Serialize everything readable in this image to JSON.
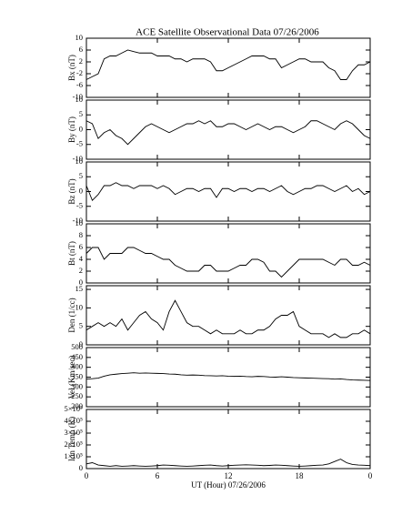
{
  "title": "ACE Satellite Observational Data   07/26/2006",
  "xlabel": "UT (Hour)   07/26/2006",
  "xlim": [
    0,
    24
  ],
  "xticks": [
    0,
    6,
    12,
    18,
    {
      "value": 24,
      "label": "0"
    }
  ],
  "x": [
    0,
    0.5,
    1,
    1.5,
    2,
    2.5,
    3,
    3.5,
    4,
    4.5,
    5,
    5.5,
    6,
    6.5,
    7,
    7.5,
    8,
    8.5,
    9,
    9.5,
    10,
    10.5,
    11,
    11.5,
    12,
    12.5,
    13,
    13.5,
    14,
    14.5,
    15,
    15.5,
    16,
    16.5,
    17,
    17.5,
    18,
    18.5,
    19,
    19.5,
    20,
    20.5,
    21,
    21.5,
    22,
    22.5,
    23,
    23.5,
    24
  ],
  "chart_data": [
    {
      "type": "line",
      "ylabel": "Bx (nT)",
      "color": "#000000",
      "ylim": [
        -10,
        10
      ],
      "yticks": [
        -10,
        -6,
        -2,
        2,
        6,
        10
      ],
      "values": [
        -4,
        -3,
        -2,
        3,
        4,
        4,
        5,
        6,
        5.5,
        5,
        5,
        5,
        4,
        4,
        4,
        3,
        3,
        2,
        3,
        3,
        3,
        2,
        -1,
        -1,
        0,
        1,
        2,
        3,
        4,
        4,
        4,
        3,
        3,
        0,
        1,
        2,
        3,
        3,
        2,
        2,
        2,
        0,
        -1,
        -4,
        -4,
        -1,
        1,
        1,
        2
      ]
    },
    {
      "type": "line",
      "ylabel": "By (nT)",
      "color": "#000000",
      "ylim": [
        -10,
        10
      ],
      "yticks": [
        -10,
        -5,
        0,
        5,
        10
      ],
      "values": [
        3,
        2,
        -3,
        -1,
        0,
        -2,
        -3,
        -5,
        -3,
        -1,
        1,
        2,
        1,
        0,
        -1,
        0,
        1,
        2,
        2,
        3,
        2,
        3,
        1,
        1,
        2,
        2,
        1,
        0,
        1,
        2,
        1,
        0,
        1,
        1,
        0,
        -1,
        0,
        1,
        3,
        3,
        2,
        1,
        0,
        2,
        3,
        2,
        0,
        -2,
        -3
      ]
    },
    {
      "type": "line",
      "ylabel": "Bz (nT)",
      "color": "#000000",
      "ylim": [
        -10,
        10
      ],
      "yticks": [
        -10,
        -5,
        0,
        5,
        10
      ],
      "values": [
        2,
        -3,
        -1,
        2,
        2,
        3,
        2,
        2,
        1,
        2,
        2,
        2,
        1,
        2,
        1,
        -1,
        0,
        1,
        1,
        0,
        1,
        1,
        -2,
        1,
        1,
        0,
        1,
        1,
        0,
        1,
        1,
        0,
        1,
        2,
        0,
        -1,
        0,
        1,
        1,
        2,
        2,
        1,
        0,
        1,
        2,
        0,
        1,
        -1,
        0
      ]
    },
    {
      "type": "line",
      "ylabel": "Bt (nT)",
      "color": "#000000",
      "ylim": [
        0,
        10
      ],
      "yticks": [
        0,
        2,
        4,
        6,
        8,
        10
      ],
      "values": [
        5,
        6,
        6,
        4,
        5,
        5,
        5,
        6,
        6,
        5.5,
        5,
        5,
        4.5,
        4,
        4,
        3,
        2.5,
        2,
        2,
        2,
        3,
        3,
        2,
        2,
        2,
        2.5,
        3,
        3,
        4,
        4,
        3.5,
        2,
        2,
        1,
        2,
        3,
        4,
        4,
        4,
        4,
        4,
        3.5,
        3,
        4,
        4,
        3,
        3,
        3.5,
        3
      ]
    },
    {
      "type": "line",
      "ylabel": "Den (1/cc)",
      "color": "#000000",
      "ylim": [
        0,
        16
      ],
      "yticks": [
        0,
        5,
        10,
        15
      ],
      "values": [
        4,
        5,
        6,
        5,
        6,
        5,
        7,
        4,
        6,
        8,
        9,
        7,
        6,
        4,
        9,
        12,
        9,
        6,
        5,
        5,
        4,
        3,
        4,
        3,
        3,
        3,
        4,
        3,
        3,
        4,
        4,
        5,
        7,
        8,
        8,
        9,
        5,
        4,
        3,
        3,
        3,
        2,
        3,
        2,
        2,
        3,
        3,
        4,
        3
      ]
    },
    {
      "type": "line",
      "ylabel": "Vel (Km/sec)",
      "color": "#000000",
      "ylim": [
        200,
        500
      ],
      "yticks": [
        200,
        250,
        300,
        350,
        400,
        450,
        500
      ],
      "values": [
        340,
        342,
        345,
        355,
        362,
        365,
        368,
        370,
        372,
        370,
        371,
        370,
        369,
        368,
        366,
        365,
        362,
        360,
        361,
        360,
        358,
        357,
        356,
        357,
        355,
        354,
        355,
        353,
        352,
        354,
        353,
        351,
        350,
        352,
        350,
        348,
        347,
        346,
        345,
        344,
        343,
        342,
        340,
        341,
        338,
        336,
        335,
        334,
        333
      ]
    },
    {
      "type": "line",
      "ylabel": "Ion Temp (K)",
      "color": "#000000",
      "ylim": [
        0,
        500000
      ],
      "yticks": [
        0,
        {
          "value": 100000,
          "label": "1×10⁵"
        },
        {
          "value": 200000,
          "label": "2×10⁵"
        },
        {
          "value": 300000,
          "label": "3×10⁵"
        },
        {
          "value": 400000,
          "label": "4×10⁵"
        },
        {
          "value": 500000,
          "label": "5×10⁵"
        }
      ],
      "values": [
        40000,
        50000,
        30000,
        25000,
        20000,
        25000,
        20000,
        22000,
        25000,
        22000,
        20000,
        22000,
        25000,
        30000,
        28000,
        25000,
        22000,
        20000,
        22000,
        25000,
        28000,
        30000,
        25000,
        22000,
        25000,
        28000,
        30000,
        32000,
        30000,
        28000,
        25000,
        27000,
        30000,
        28000,
        25000,
        22000,
        20000,
        22000,
        25000,
        28000,
        30000,
        40000,
        60000,
        80000,
        50000,
        35000,
        30000,
        28000,
        25000
      ]
    }
  ]
}
